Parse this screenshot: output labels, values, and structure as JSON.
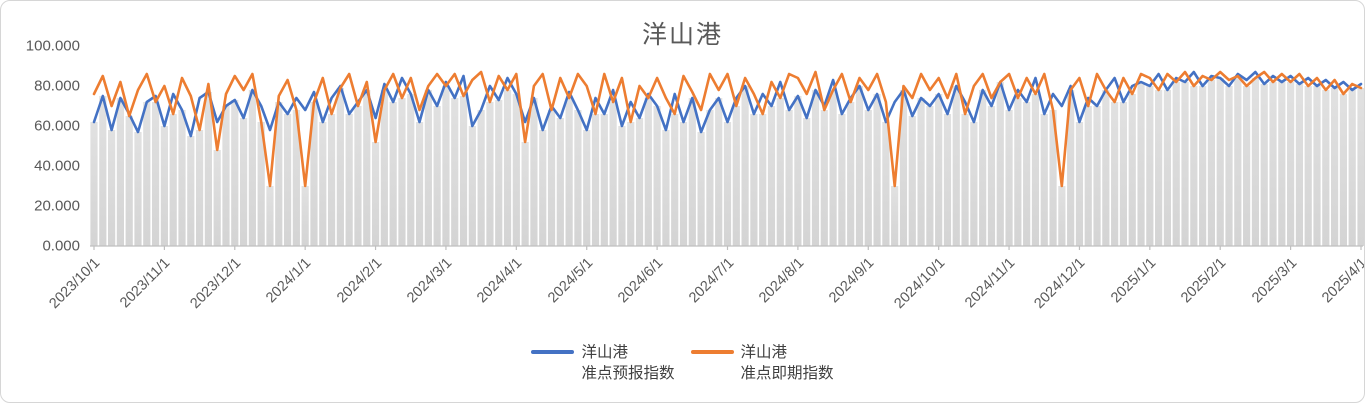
{
  "colors": {
    "forecast_line": "#4472C4",
    "spot_line": "#ED7D31",
    "column_fill_top": "#E1E1E1",
    "column_fill_bottom": "#D4D4D4",
    "axis_line": "#BFBFBF",
    "axis_text": "#595959",
    "title_text": "#595959",
    "legend_text": "#404040",
    "frame_border": "#D6D6D6"
  },
  "legend": {
    "items": [
      {
        "line1": "洋山港",
        "line2": "准点预报指数",
        "color": "#4472C4"
      },
      {
        "line1": "洋山港",
        "line2": "准点即期指数",
        "color": "#ED7D31"
      }
    ]
  },
  "chart_data": {
    "type": "line",
    "title": "洋山港",
    "xlabel": "",
    "ylabel": "",
    "ylim": [
      0,
      100
    ],
    "grid": false,
    "legend_position": "bottom",
    "y_tick_labels": [
      "0.000",
      "20.000",
      "40.000",
      "60.000",
      "80.000",
      "100.000"
    ],
    "y_tick_values": [
      0,
      20,
      40,
      60,
      80,
      100
    ],
    "x_tick_labels": [
      "2023/10/1",
      "2023/11/1",
      "2023/12/1",
      "2024/1/1",
      "2024/2/1",
      "2024/3/1",
      "2024/4/1",
      "2024/5/1",
      "2024/6/1",
      "2024/7/1",
      "2024/8/1",
      "2024/9/1",
      "2024/10/1",
      "2024/11/1",
      "2024/12/1",
      "2025/1/1",
      "2025/2/1",
      "2025/3/1",
      "2025/4/1"
    ],
    "points_per_tick": 8,
    "background_columns": "gray columns drawn from 0 up to the lower of the two series at each x",
    "x_dates": [
      "2023/10/1",
      "2023/10/5",
      "2023/10/9",
      "2023/10/13",
      "2023/10/17",
      "2023/10/21",
      "2023/10/25",
      "2023/10/28",
      "2023/11/1",
      "2023/11/5",
      "2023/11/9",
      "2023/11/13",
      "2023/11/17",
      "2023/11/21",
      "2023/11/25",
      "2023/11/28",
      "2023/12/1",
      "2023/12/5",
      "2023/12/9",
      "2023/12/13",
      "2023/12/17",
      "2023/12/21",
      "2023/12/25",
      "2023/12/28",
      "2024/1/1",
      "2024/1/5",
      "2024/1/9",
      "2024/1/13",
      "2024/1/17",
      "2024/1/21",
      "2024/1/25",
      "2024/1/28",
      "2024/2/1",
      "2024/2/5",
      "2024/2/9",
      "2024/2/13",
      "2024/2/17",
      "2024/2/21",
      "2024/2/25",
      "2024/2/28",
      "2024/3/1",
      "2024/3/5",
      "2024/3/9",
      "2024/3/13",
      "2024/3/17",
      "2024/3/21",
      "2024/3/25",
      "2024/3/28",
      "2024/4/1",
      "2024/4/5",
      "2024/4/9",
      "2024/4/13",
      "2024/4/17",
      "2024/4/21",
      "2024/4/25",
      "2024/4/28",
      "2024/5/1",
      "2024/5/5",
      "2024/5/9",
      "2024/5/13",
      "2024/5/17",
      "2024/5/21",
      "2024/5/25",
      "2024/5/28",
      "2024/6/1",
      "2024/6/5",
      "2024/6/9",
      "2024/6/13",
      "2024/6/17",
      "2024/6/21",
      "2024/6/25",
      "2024/6/28",
      "2024/7/1",
      "2024/7/5",
      "2024/7/9",
      "2024/7/13",
      "2024/7/17",
      "2024/7/21",
      "2024/7/25",
      "2024/7/28",
      "2024/8/1",
      "2024/8/5",
      "2024/8/9",
      "2024/8/13",
      "2024/8/17",
      "2024/8/21",
      "2024/8/25",
      "2024/8/28",
      "2024/9/1",
      "2024/9/5",
      "2024/9/9",
      "2024/9/13",
      "2024/9/17",
      "2024/9/21",
      "2024/9/25",
      "2024/9/28",
      "2024/10/1",
      "2024/10/5",
      "2024/10/9",
      "2024/10/13",
      "2024/10/17",
      "2024/10/21",
      "2024/10/25",
      "2024/10/28",
      "2024/11/1",
      "2024/11/5",
      "2024/11/9",
      "2024/11/13",
      "2024/11/17",
      "2024/11/21",
      "2024/11/25",
      "2024/11/28",
      "2024/12/1",
      "2024/12/5",
      "2024/12/9",
      "2024/12/13",
      "2024/12/17",
      "2024/12/21",
      "2024/12/25",
      "2024/12/28",
      "2025/1/1",
      "2025/1/5",
      "2025/1/9",
      "2025/1/13",
      "2025/1/17",
      "2025/1/21",
      "2025/1/25",
      "2025/1/28",
      "2025/2/1",
      "2025/2/5",
      "2025/2/9",
      "2025/2/13",
      "2025/2/17",
      "2025/2/21",
      "2025/2/25",
      "2025/2/28",
      "2025/3/1",
      "2025/3/5",
      "2025/3/9",
      "2025/3/13",
      "2025/3/17",
      "2025/3/21",
      "2025/3/25",
      "2025/3/28",
      "2025/4/1"
    ],
    "series": [
      {
        "name": "洋山港准点预报指数",
        "color": "#4472C4",
        "values": [
          62,
          75,
          58,
          74,
          66,
          57,
          72,
          75,
          60,
          76,
          68,
          55,
          74,
          77,
          62,
          70,
          73,
          64,
          78,
          70,
          58,
          72,
          66,
          74,
          68,
          77,
          62,
          74,
          80,
          66,
          72,
          78,
          64,
          81,
          72,
          84,
          76,
          62,
          78,
          70,
          82,
          74,
          85,
          60,
          68,
          80,
          73,
          84,
          76,
          62,
          74,
          58,
          70,
          64,
          77,
          68,
          58,
          74,
          66,
          78,
          60,
          72,
          64,
          76,
          70,
          58,
          76,
          62,
          74,
          57,
          68,
          74,
          62,
          74,
          80,
          66,
          76,
          70,
          82,
          68,
          75,
          64,
          78,
          70,
          83,
          66,
          74,
          80,
          68,
          76,
          62,
          72,
          78,
          65,
          74,
          70,
          76,
          66,
          80,
          72,
          62,
          78,
          70,
          82,
          68,
          78,
          72,
          84,
          66,
          76,
          70,
          80,
          62,
          74,
          70,
          78,
          84,
          72,
          80,
          82,
          80,
          86,
          78,
          84,
          82,
          87,
          80,
          85,
          84,
          80,
          86,
          83,
          87,
          81,
          85,
          82,
          85,
          81,
          84,
          80,
          83,
          79,
          82,
          78,
          81
        ]
      },
      {
        "name": "洋山港准点即期指数",
        "color": "#ED7D31",
        "values": [
          76,
          85,
          70,
          82,
          65,
          78,
          86,
          72,
          80,
          66,
          84,
          75,
          58,
          81,
          48,
          76,
          85,
          78,
          86,
          62,
          30,
          75,
          83,
          68,
          30,
          72,
          84,
          66,
          79,
          86,
          70,
          82,
          52,
          78,
          86,
          74,
          84,
          68,
          80,
          86,
          80,
          86,
          75,
          83,
          87,
          72,
          85,
          78,
          86,
          52,
          80,
          86,
          68,
          84,
          74,
          86,
          80,
          66,
          86,
          72,
          84,
          62,
          80,
          74,
          84,
          74,
          66,
          85,
          77,
          68,
          86,
          78,
          86,
          70,
          84,
          76,
          66,
          82,
          74,
          86,
          84,
          76,
          87,
          68,
          78,
          86,
          72,
          84,
          78,
          86,
          72,
          30,
          80,
          74,
          86,
          78,
          84,
          74,
          86,
          66,
          80,
          86,
          74,
          82,
          86,
          74,
          84,
          76,
          86,
          68,
          30,
          78,
          84,
          70,
          86,
          78,
          72,
          84,
          76,
          86,
          84,
          78,
          86,
          82,
          87,
          80,
          85,
          83,
          87,
          83,
          85,
          80,
          84,
          87,
          82,
          86,
          82,
          86,
          80,
          84,
          78,
          83,
          76,
          81,
          79
        ]
      }
    ]
  }
}
